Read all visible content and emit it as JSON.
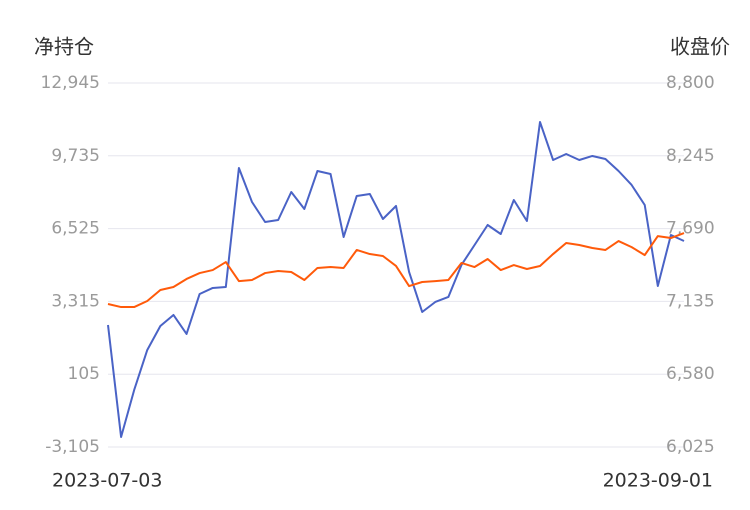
{
  "chart_data": {
    "type": "line",
    "y_label": "净持仓",
    "y2_label": "收盘价",
    "categories": [
      "2023-07-03",
      null,
      null,
      null,
      null,
      null,
      null,
      null,
      null,
      null,
      null,
      null,
      null,
      null,
      null,
      null,
      null,
      null,
      null,
      null,
      null,
      null,
      null,
      null,
      null,
      null,
      null,
      null,
      null,
      null,
      null,
      null,
      null,
      null,
      null,
      null,
      null,
      null,
      null,
      null,
      null,
      null,
      null,
      null,
      "2023-09-01"
    ],
    "series": [
      {
        "name": "净持仓",
        "color": "#4a63c6",
        "axis": "y",
        "values": [
          2275,
          -2663,
          -591,
          1173,
          2231,
          2716,
          1878,
          3642,
          3907,
          3951,
          9197,
          7698,
          6816,
          6904,
          8139,
          7390,
          9065,
          8933,
          6155,
          7963,
          8051,
          6949,
          7522,
          4612,
          2848,
          3289,
          3510,
          4921,
          5802,
          6684,
          6287,
          7786,
          6860,
          11225,
          9550,
          9815,
          9550,
          9727,
          9594,
          9065,
          8448,
          7566,
          3995,
          6243,
          5979
        ]
      },
      {
        "name": "收盘价",
        "color": "#ff5a0a",
        "axis": "y2",
        "values": [
          7115,
          7092,
          7092,
          7138,
          7222,
          7245,
          7306,
          7351,
          7374,
          7435,
          7290,
          7298,
          7351,
          7367,
          7359,
          7298,
          7390,
          7397,
          7390,
          7527,
          7496,
          7481,
          7405,
          7252,
          7283,
          7290,
          7298,
          7428,
          7397,
          7458,
          7374,
          7412,
          7382,
          7405,
          7496,
          7580,
          7565,
          7542,
          7527,
          7595,
          7549,
          7488,
          7633,
          7618,
          7656
        ]
      }
    ],
    "ylim": [
      -3105,
      12945
    ],
    "yticks": [
      {
        "value": -3105,
        "label": "-3,105"
      },
      105,
      {
        "value": 3315,
        "label": "3,315"
      },
      {
        "value": 6525,
        "label": "6,525"
      },
      {
        "value": 9735,
        "label": "9,735"
      },
      {
        "value": 12945,
        "label": "12,945"
      }
    ],
    "y2lim": [
      6025,
      8800
    ],
    "y2ticks": [
      {
        "value": 6025,
        "label": "6,025"
      },
      {
        "value": 6580,
        "label": "6,580"
      },
      {
        "value": 7135,
        "label": "7,135"
      },
      {
        "value": 7690,
        "label": "7,690"
      },
      {
        "value": 8245,
        "label": "8,245"
      },
      {
        "value": 8800,
        "label": "8,800"
      }
    ],
    "grid": true
  }
}
